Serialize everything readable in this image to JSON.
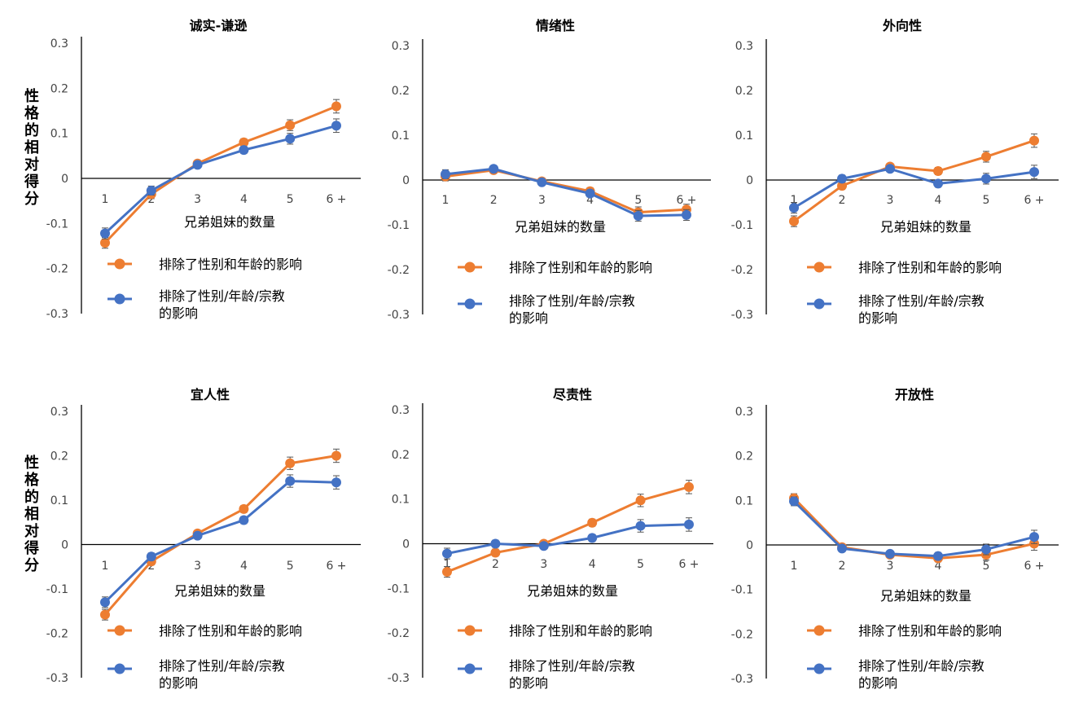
{
  "y_label": "性格的相对得分",
  "colors": {
    "orange": "#ED7D31",
    "blue": "#4472C4",
    "axis": "#000000",
    "tick": "#444444"
  },
  "chart_data": [
    {
      "type": "line",
      "title": "诚实-谦逊",
      "xlabel": "兄弟姐妹的数量",
      "categories": [
        "1",
        "2",
        "3",
        "4",
        "5",
        "6 +"
      ],
      "ylim": [
        -0.3,
        0.3
      ],
      "yticks": [
        "0.3",
        "0.2",
        "0.1",
        "0",
        "-0.1",
        "-0.2",
        "-0.3"
      ],
      "series": [
        {
          "name": "排除了性别和年龄的影响",
          "values": [
            -0.143,
            -0.035,
            0.033,
            0.08,
            0.118,
            0.16
          ],
          "errors": [
            0.012,
            0.01,
            0.006,
            0.008,
            0.012,
            0.015
          ]
        },
        {
          "name": "排除了性别/年龄/宗教的影响",
          "values": [
            -0.122,
            -0.027,
            0.03,
            0.063,
            0.088,
            0.117
          ],
          "errors": [
            0.012,
            0.01,
            0.006,
            0.008,
            0.012,
            0.015
          ]
        }
      ]
    },
    {
      "type": "line",
      "title": "情绪性",
      "xlabel": "兄弟姐妹的数量",
      "categories": [
        "1",
        "2",
        "3",
        "4",
        "5",
        "6 +"
      ],
      "ylim": [
        -0.3,
        0.3
      ],
      "yticks": [
        "0.3",
        "0.2",
        "0.1",
        "0",
        "-0.1",
        "-0.2",
        "-0.3"
      ],
      "series": [
        {
          "name": "排除了性别和年龄的影响",
          "values": [
            0.008,
            0.022,
            -0.003,
            -0.025,
            -0.072,
            -0.066
          ],
          "errors": [
            0.01,
            0.006,
            0.006,
            0.008,
            0.012,
            0.012
          ]
        },
        {
          "name": "排除了性别/年龄/宗教的影响",
          "values": [
            0.013,
            0.025,
            -0.005,
            -0.03,
            -0.08,
            -0.078
          ],
          "errors": [
            0.01,
            0.006,
            0.006,
            0.008,
            0.012,
            0.012
          ]
        }
      ]
    },
    {
      "type": "line",
      "title": "外向性",
      "xlabel": "兄弟姐妹的数量",
      "categories": [
        "1",
        "2",
        "3",
        "4",
        "5",
        "6 +"
      ],
      "ylim": [
        -0.3,
        0.3
      ],
      "yticks": [
        "0.3",
        "0.2",
        "0.1",
        "0",
        "-0.1",
        "-0.2",
        "-0.3"
      ],
      "series": [
        {
          "name": "排除了性别和年龄的影响",
          "values": [
            -0.092,
            -0.013,
            0.03,
            0.02,
            0.052,
            0.088
          ],
          "errors": [
            0.012,
            0.008,
            0.006,
            0.008,
            0.012,
            0.015
          ]
        },
        {
          "name": "排除了性别/年龄/宗教的影响",
          "values": [
            -0.062,
            0.003,
            0.025,
            -0.008,
            0.003,
            0.018
          ],
          "errors": [
            0.012,
            0.008,
            0.006,
            0.008,
            0.012,
            0.015
          ]
        }
      ]
    },
    {
      "type": "line",
      "title": "宜人性",
      "xlabel": "兄弟姐妹的数量",
      "categories": [
        "1",
        "2",
        "3",
        "4",
        "5",
        "6 +"
      ],
      "ylim": [
        -0.3,
        0.3
      ],
      "yticks": [
        "0.3",
        "0.2",
        "0.1",
        "0",
        "-0.1",
        "-0.2",
        "-0.3"
      ],
      "series": [
        {
          "name": "排除了性别和年龄的影响",
          "values": [
            -0.158,
            -0.038,
            0.025,
            0.08,
            0.183,
            0.2
          ],
          "errors": [
            0.012,
            0.008,
            0.006,
            0.008,
            0.014,
            0.015
          ]
        },
        {
          "name": "排除了性别/年龄/宗教的影响",
          "values": [
            -0.13,
            -0.027,
            0.02,
            0.055,
            0.143,
            0.14
          ],
          "errors": [
            0.012,
            0.008,
            0.006,
            0.008,
            0.014,
            0.015
          ]
        }
      ]
    },
    {
      "type": "line",
      "title": "尽责性",
      "xlabel": "兄弟姐妹的数量",
      "categories": [
        "1",
        "2",
        "3",
        "4",
        "5",
        "6 +"
      ],
      "ylim": [
        -0.3,
        0.3
      ],
      "yticks": [
        "0.3",
        "0.2",
        "0.1",
        "0",
        "-0.1",
        "-0.2",
        "-0.3"
      ],
      "series": [
        {
          "name": "排除了性别和年龄的影响",
          "values": [
            -0.063,
            -0.02,
            0.0,
            0.047,
            0.097,
            0.127
          ],
          "errors": [
            0.012,
            0.008,
            0.006,
            0.008,
            0.014,
            0.015
          ]
        },
        {
          "name": "排除了性别/年龄/宗教的影响",
          "values": [
            -0.022,
            0.0,
            -0.005,
            0.013,
            0.04,
            0.043
          ],
          "errors": [
            0.012,
            0.008,
            0.006,
            0.008,
            0.014,
            0.015
          ]
        }
      ]
    },
    {
      "type": "line",
      "title": "开放性",
      "xlabel": "兄弟姐妹的数量",
      "categories": [
        "1",
        "2",
        "3",
        "4",
        "5",
        "6 +"
      ],
      "ylim": [
        -0.3,
        0.3
      ],
      "yticks": [
        "0.3",
        "0.2",
        "0.1",
        "0",
        "-0.1",
        "-0.2",
        "-0.3"
      ],
      "series": [
        {
          "name": "排除了性别和年龄的影响",
          "values": [
            0.105,
            -0.005,
            -0.022,
            -0.03,
            -0.022,
            0.003
          ],
          "errors": [
            0.01,
            0.006,
            0.006,
            0.008,
            0.012,
            0.015
          ]
        },
        {
          "name": "排除了性别/年龄/宗教的影响",
          "values": [
            0.098,
            -0.008,
            -0.02,
            -0.025,
            -0.01,
            0.018
          ],
          "errors": [
            0.01,
            0.006,
            0.006,
            0.008,
            0.012,
            0.015
          ]
        }
      ]
    }
  ]
}
